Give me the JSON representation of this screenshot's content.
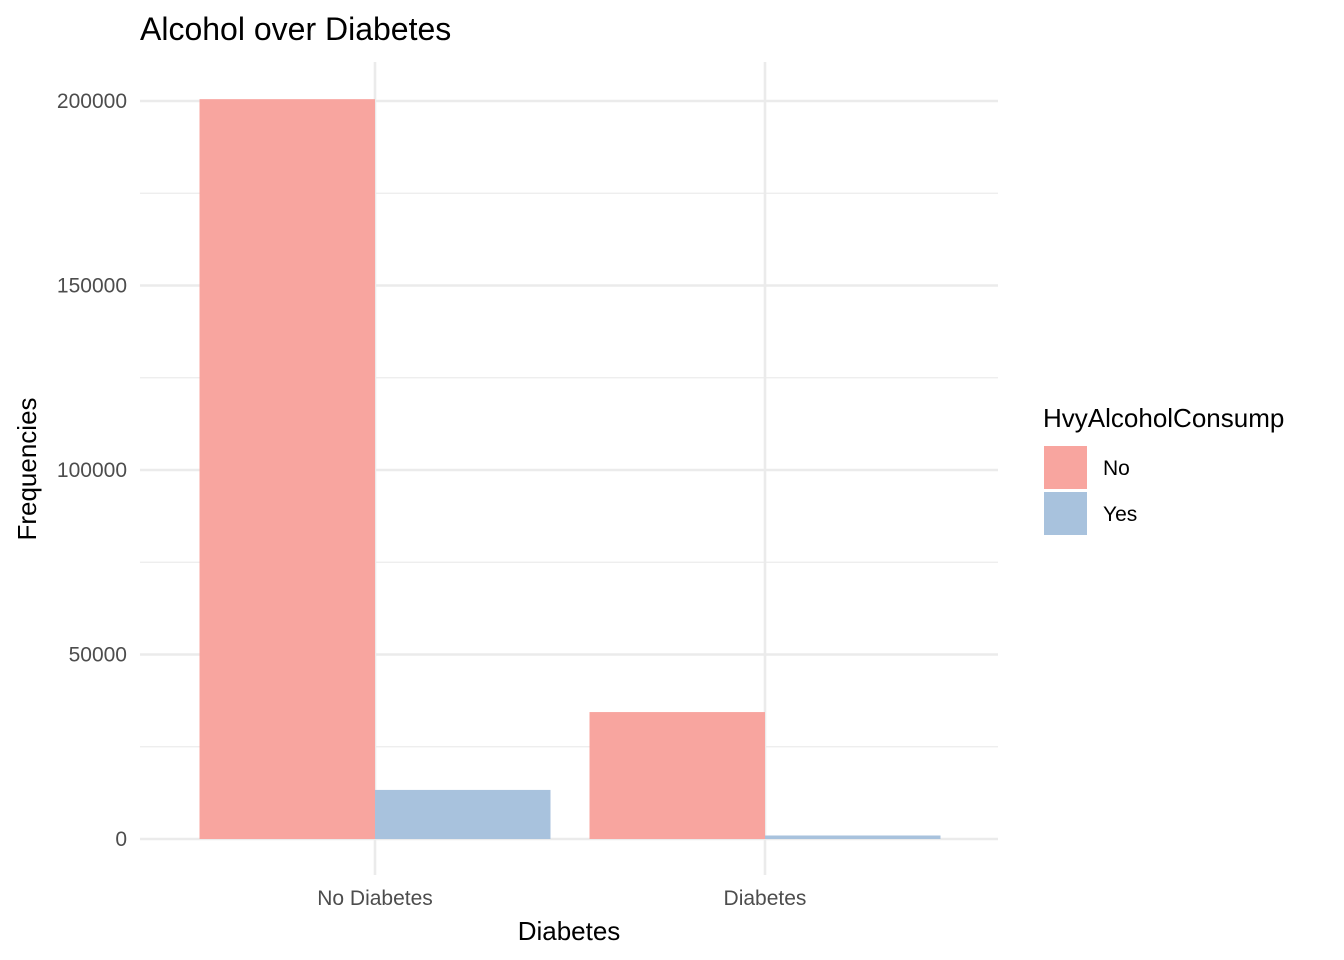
{
  "chart_data": {
    "type": "bar",
    "title": "Alcohol over Diabetes",
    "xlabel": "Diabetes",
    "ylabel": "Frequencies",
    "categories": [
      "No Diabetes",
      "Diabetes"
    ],
    "series": [
      {
        "name": "No",
        "color": "#F8A59F",
        "values": [
          200500,
          34400
        ]
      },
      {
        "name": "Yes",
        "color": "#A8C2DD",
        "values": [
          13300,
          950
        ]
      }
    ],
    "ylim": [
      0,
      210000
    ],
    "yticks": [
      0,
      50000,
      100000,
      150000,
      200000
    ],
    "ytick_labels": [
      "0",
      "50000",
      "100000",
      "150000",
      "200000"
    ],
    "legend": {
      "title": "HvyAlcoholConsump",
      "position": "right"
    },
    "grid": true
  }
}
